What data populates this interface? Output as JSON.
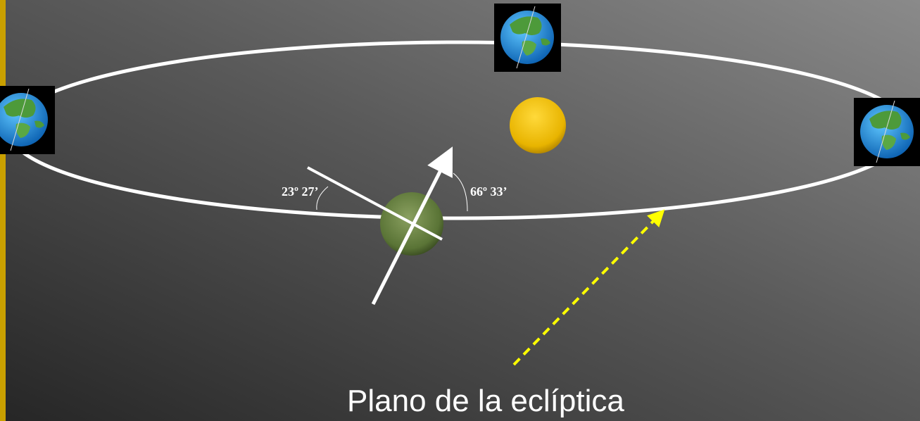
{
  "annotations": [
    {
      "text": "23º 27’"
    },
    {
      "text": "66º 33’"
    }
  ],
  "caption": "Plano de la eclíptica"
}
